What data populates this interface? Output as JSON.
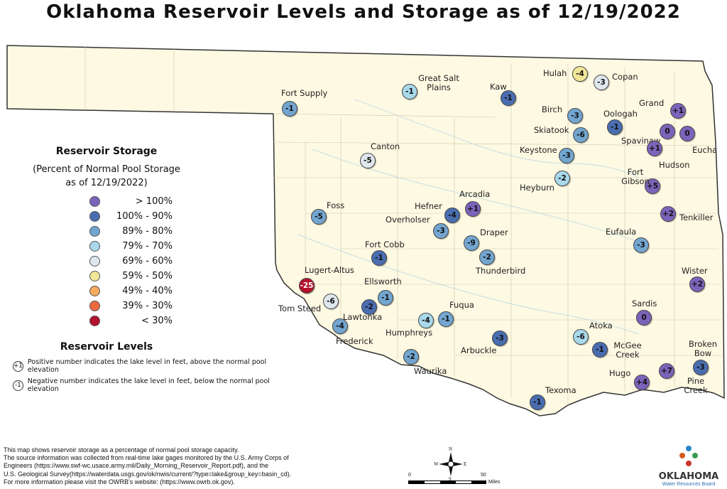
{
  "title": "Oklahoma Reservoir Levels and Storage as of 12/19/2022",
  "legend": {
    "storage_title": "Reservoir Storage",
    "storage_subtitle_1": "(Percent of Normal Pool Storage",
    "storage_subtitle_2": "as of 12/19/2022)",
    "classes": [
      {
        "label": "> 100%",
        "color": "#7b63b9"
      },
      {
        "label": "100% - 90%",
        "color": "#4a6db0"
      },
      {
        "label": "89% - 80%",
        "color": "#72a5cf"
      },
      {
        "label": "79% - 70%",
        "color": "#a9d8ea"
      },
      {
        "label": "69% - 60%",
        "color": "#dfe7ee"
      },
      {
        "label": "59% - 50%",
        "color": "#f2e699"
      },
      {
        "label": "49% - 40%",
        "color": "#f6aa5e"
      },
      {
        "label": "39% - 30%",
        "color": "#ee6a3d"
      },
      {
        "label": "< 30%",
        "color": "#b3122c"
      }
    ],
    "levels_title": "Reservoir Levels",
    "levels": [
      {
        "icon": "+1",
        "text": "Positive number indicates the lake level in feet, above the normal pool elevation"
      },
      {
        "icon": "-1",
        "text": "Negative number indicates the lake level in feet, below the normal pool elevation"
      }
    ]
  },
  "reservoirs": [
    {
      "name": "Fort Supply",
      "level": "-1",
      "class": 2
    },
    {
      "name": "Great Salt Plains",
      "level": "-1",
      "class": 3
    },
    {
      "name": "Kaw",
      "level": "-1",
      "class": 1
    },
    {
      "name": "Hulah",
      "level": "-4",
      "class": 5
    },
    {
      "name": "Copan",
      "level": "-3",
      "class": 4
    },
    {
      "name": "Birch",
      "level": "-3",
      "class": 2
    },
    {
      "name": "Oologah",
      "level": "-1",
      "class": 1
    },
    {
      "name": "Grand",
      "level": "+1",
      "class": 0
    },
    {
      "name": "Skiatook",
      "level": "-6",
      "class": 2
    },
    {
      "name": "Spavinaw",
      "level": "0",
      "class": 0
    },
    {
      "name": "Eucha",
      "level": "0",
      "class": 0
    },
    {
      "name": "Hudson",
      "level": "+1",
      "class": 0
    },
    {
      "name": "Keystone",
      "level": "-3",
      "class": 2
    },
    {
      "name": "Canton",
      "level": "-5",
      "class": 4
    },
    {
      "name": "Heyburn",
      "level": "-2",
      "class": 3
    },
    {
      "name": "Fort Gibson",
      "level": "+5",
      "class": 0
    },
    {
      "name": "Arcadia",
      "level": "+1",
      "class": 0
    },
    {
      "name": "Hefner",
      "level": "-4",
      "class": 1
    },
    {
      "name": "Foss",
      "level": "-5",
      "class": 2
    },
    {
      "name": "Tenkiller",
      "level": "+2",
      "class": 0
    },
    {
      "name": "Overholser",
      "level": "-3",
      "class": 2
    },
    {
      "name": "Draper",
      "level": "-9",
      "class": 2
    },
    {
      "name": "Thunderbird",
      "level": "-2",
      "class": 2
    },
    {
      "name": "Eufaula",
      "level": "-3",
      "class": 2
    },
    {
      "name": "Fort Cobb",
      "level": "-1",
      "class": 1
    },
    {
      "name": "Lugert-Altus",
      "level": "-25",
      "class": 8
    },
    {
      "name": "Wister",
      "level": "+2",
      "class": 0
    },
    {
      "name": "Ellsworth",
      "level": "-1",
      "class": 2
    },
    {
      "name": "Lawtonka",
      "level": "-2",
      "class": 1
    },
    {
      "name": "Tom Steed",
      "level": "-6",
      "class": 4
    },
    {
      "name": "Fuqua",
      "level": "-1",
      "class": 2
    },
    {
      "name": "Humphreys",
      "level": "-4",
      "class": 3
    },
    {
      "name": "Sardis",
      "level": "0",
      "class": 0
    },
    {
      "name": "Frederick",
      "level": "-4",
      "class": 2
    },
    {
      "name": "Arbuckle",
      "level": "-3",
      "class": 1
    },
    {
      "name": "Atoka",
      "level": "-6",
      "class": 3
    },
    {
      "name": "McGee Creek",
      "level": "-1",
      "class": 1
    },
    {
      "name": "Waurika",
      "level": "-2",
      "class": 2
    },
    {
      "name": "Broken Bow",
      "level": "-3",
      "class": 1
    },
    {
      "name": "Pine Creek",
      "level": "+7",
      "class": 0
    },
    {
      "name": "Hugo",
      "level": "+4",
      "class": 0
    },
    {
      "name": "Texoma",
      "level": "-1",
      "class": 1
    }
  ],
  "note": [
    "This map shows reservoir storage as a percentage of normal pool storage capacity.",
    "The source information was collected from real-time lake gages monitored by the U.S. Army Corps of",
    "Engineers (https://www.swf-wc.usace.army.mil/Daily_Morning_Reservoir_Report.pdf), and the",
    "U.S. Geological Survey(https://waterdata.usgs.gov/ok/nwis/current/?type=lake&group_key=basin_cd).",
    "For more information please visit the OWRB's website: (https://www.owrb.ok.gov)."
  ],
  "compass": {
    "n": "N",
    "s": "S",
    "e": "E",
    "w": "W"
  },
  "scale": {
    "start": "0",
    "end": "50",
    "unit": "Miles"
  },
  "logo": {
    "name": "OKLAHOMA",
    "sub": "Water Resources Board"
  }
}
